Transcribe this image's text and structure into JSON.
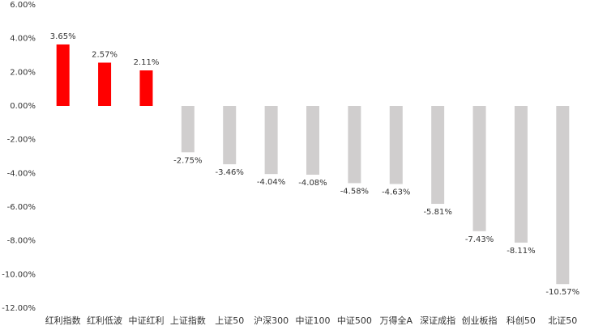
{
  "chart_data": {
    "type": "bar",
    "categories": [
      "红利指数",
      "红利低波",
      "中证红利",
      "上证指数",
      "上证50",
      "沪深300",
      "中证100",
      "中证500",
      "万得全A",
      "深证成指",
      "创业板指",
      "科创50",
      "北证50"
    ],
    "values": [
      3.65,
      2.57,
      2.11,
      -2.75,
      -3.46,
      -4.04,
      -4.08,
      -4.58,
      -4.63,
      -5.81,
      -7.43,
      -8.11,
      -10.57
    ],
    "value_labels": [
      "3.65%",
      "2.57%",
      "2.11%",
      "-2.75%",
      "-3.46%",
      "-4.04%",
      "-4.08%",
      "-4.58%",
      "-4.63%",
      "-5.81%",
      "-7.43%",
      "-8.11%",
      "-10.57%"
    ],
    "colors": [
      "#ff0000",
      "#ff0000",
      "#ff0000",
      "#d0cece",
      "#d0cece",
      "#d0cece",
      "#d0cece",
      "#d0cece",
      "#d0cece",
      "#d0cece",
      "#d0cece",
      "#d0cece",
      "#d0cece"
    ],
    "ylim": [
      -12,
      6
    ],
    "yticks": [
      {
        "value": 6,
        "label": "6.00%"
      },
      {
        "value": 4,
        "label": "4.00%"
      },
      {
        "value": 2,
        "label": "2.00%"
      },
      {
        "value": 0,
        "label": "0.00%"
      },
      {
        "value": -2,
        "label": "-2.00%"
      },
      {
        "value": -4,
        "label": "-4.00%"
      },
      {
        "value": -6,
        "label": "-6.00%"
      },
      {
        "value": -8,
        "label": "-8.00%"
      },
      {
        "value": -10,
        "label": "-10.00%"
      },
      {
        "value": -12,
        "label": "-12.00%"
      }
    ],
    "grid": false
  }
}
